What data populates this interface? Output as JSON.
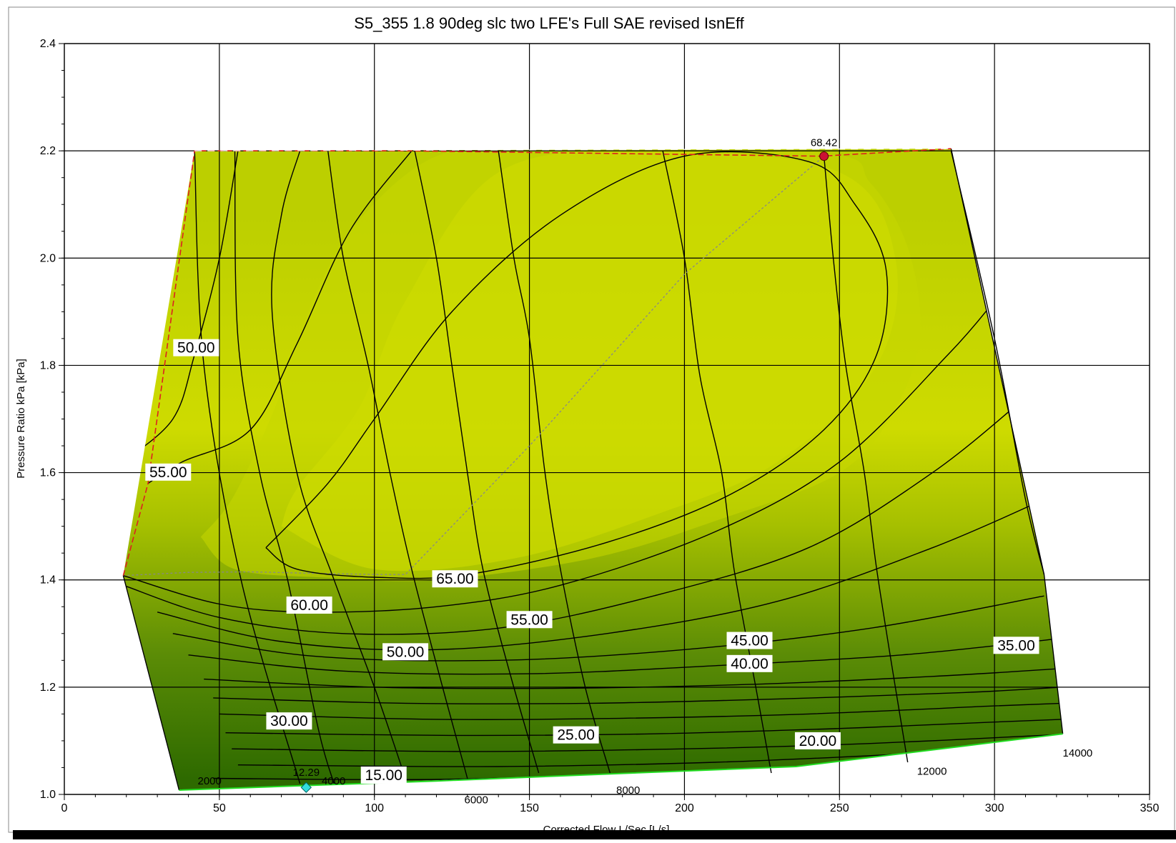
{
  "chart_data": {
    "type": "contour",
    "title": "S5_355 1.8 90deg slc  two LFE's Full SAE revised IsnEff",
    "xlabel": "Corrected Flow L/Sec [L/s]",
    "ylabel": "Pressure Ratio kPa [kPa]",
    "xlim": [
      0,
      350
    ],
    "ylim": [
      1.0,
      2.4
    ],
    "xticks": [
      0,
      50,
      100,
      150,
      200,
      250,
      300,
      350
    ],
    "xtick_labels": [
      "0",
      "50",
      "100",
      "150",
      "200",
      "250",
      "300",
      "350"
    ],
    "yticks": [
      1.0,
      1.2,
      1.4,
      1.6,
      1.8,
      2.0,
      2.2,
      2.4
    ],
    "ytick_labels": [
      "1.0",
      "1.2",
      "1.4",
      "1.6",
      "1.8",
      "2.0",
      "2.2",
      "2.4"
    ],
    "grid": true,
    "colors": {
      "high_efficiency": "#cedb00",
      "low_efficiency": "#2e6a00",
      "surge_line": "#dd2020",
      "choke_line": "#22dd22",
      "peak_marker": "#cc1133",
      "operating_marker": "#33dddd",
      "grid": "#000000",
      "contour_line": "#000000"
    },
    "map_boundary": [
      [
        42,
        2.2
      ],
      [
        286,
        2.204
      ],
      [
        316,
        1.41
      ],
      [
        322,
        1.113
      ],
      [
        236,
        1.052
      ],
      [
        37,
        1.008
      ],
      [
        19,
        1.408
      ],
      [
        42,
        2.2
      ]
    ],
    "surge_line": [
      [
        19,
        1.408
      ],
      [
        27,
        1.58
      ],
      [
        42,
        2.2
      ],
      [
        110,
        2.2
      ],
      [
        244,
        2.19
      ],
      [
        286,
        2.204
      ]
    ],
    "choke_line": [
      [
        37,
        1.008
      ],
      [
        80,
        1.017
      ],
      [
        120,
        1.025
      ],
      [
        175,
        1.038
      ],
      [
        236,
        1.052
      ],
      [
        290,
        1.09
      ],
      [
        322,
        1.113
      ]
    ],
    "efficiency_contour_labels": [
      {
        "label": "50.00",
        "x": 42.5,
        "y": 1.833
      },
      {
        "label": "55.00",
        "x": 33.5,
        "y": 1.601
      },
      {
        "label": "65.00",
        "x": 126,
        "y": 1.402
      },
      {
        "label": "60.00",
        "x": 79,
        "y": 1.353
      },
      {
        "label": "55.00",
        "x": 150,
        "y": 1.326
      },
      {
        "label": "50.00",
        "x": 110,
        "y": 1.266
      },
      {
        "label": "45.00",
        "x": 221,
        "y": 1.287
      },
      {
        "label": "40.00",
        "x": 221,
        "y": 1.244
      },
      {
        "label": "35.00",
        "x": 307,
        "y": 1.278
      },
      {
        "label": "30.00",
        "x": 72.5,
        "y": 1.137
      },
      {
        "label": "25.00",
        "x": 165,
        "y": 1.111
      },
      {
        "label": "20.00",
        "x": 243,
        "y": 1.1
      },
      {
        "label": "15.00",
        "x": 103,
        "y": 1.036
      }
    ],
    "speed_line_labels": [
      {
        "label": "2000",
        "x": 43,
        "y": 1.025
      },
      {
        "label": "4000",
        "x": 83,
        "y": 1.025
      },
      {
        "label": "6000",
        "x": 129,
        "y": 0.99
      },
      {
        "label": "8000",
        "x": 178,
        "y": 1.008
      },
      {
        "label": "12000",
        "x": 275,
        "y": 1.043
      },
      {
        "label": "14000",
        "x": 322,
        "y": 1.077
      }
    ],
    "peak_point": {
      "label": "68.42",
      "x": 245,
      "y": 2.19
    },
    "operating_point": {
      "label": "12.29",
      "x": 78,
      "y": 1.013
    }
  }
}
